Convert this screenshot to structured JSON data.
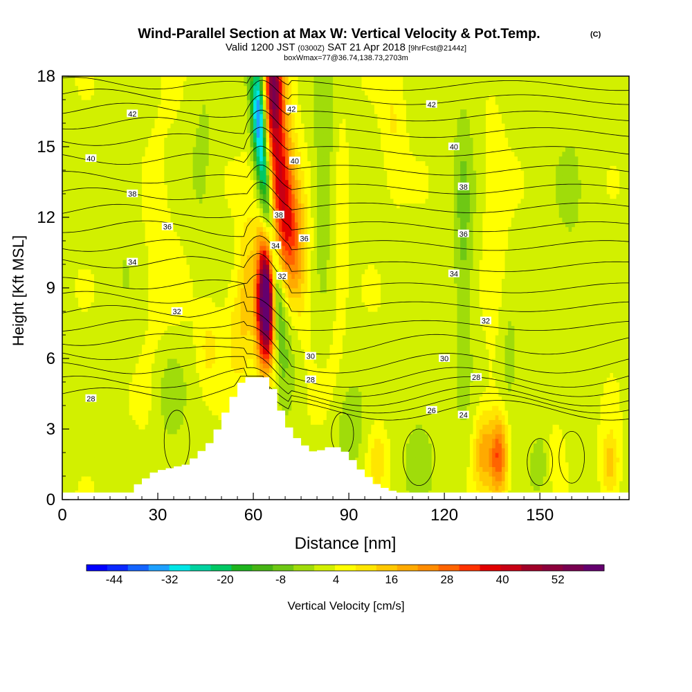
{
  "figure": {
    "title_main": "Wind-Parallel Section at Max W: Vertical Velocity & Pot.Temp.",
    "title_mark": "(C)",
    "line2_a": "Valid 1200 JST",
    "line2_b": "(0300Z)",
    "line2_c": "SAT 21 Apr 2018",
    "line2_d": "[9hrFcst@2144z]",
    "line3": "boxWmax=77@36.74,138.73,2703m"
  },
  "chart_data": {
    "type": "heatmap",
    "xlabel": "Distance [nm]",
    "ylabel": "Height [Kft MSL]",
    "xlim": [
      0,
      178
    ],
    "ylim": [
      0,
      18
    ],
    "x_ticks": [
      0,
      30,
      60,
      90,
      120,
      150
    ],
    "y_ticks": [
      0,
      3,
      6,
      9,
      12,
      15,
      18
    ],
    "colorbar": {
      "label": "Vertical Velocity [cm/s]",
      "tick_labels": [
        "-44",
        "-32",
        "-20",
        "-8",
        "4",
        "16",
        "28",
        "40",
        "52"
      ],
      "tick_values": [
        -44,
        -32,
        -20,
        -8,
        4,
        16,
        28,
        40,
        52
      ],
      "range": [
        -50,
        62
      ],
      "colors": [
        "#0000ff",
        "#0a28ff",
        "#1464ff",
        "#1ea0ff",
        "#00e6e6",
        "#00d2a0",
        "#00c864",
        "#1eb41e",
        "#46b414",
        "#6ec814",
        "#a0dc0a",
        "#d2f000",
        "#ffff00",
        "#ffe600",
        "#ffc800",
        "#ffaa00",
        "#ff8c00",
        "#ff6400",
        "#ff3200",
        "#e10000",
        "#c80014",
        "#a00028",
        "#8c003c",
        "#780050",
        "#64006e"
      ]
    },
    "terrain_kft": [
      {
        "x": 0,
        "z": 0.3
      },
      {
        "x": 20,
        "z": 0.3
      },
      {
        "x": 22,
        "z": 0.6
      },
      {
        "x": 25,
        "z": 0.9
      },
      {
        "x": 28,
        "z": 1.2
      },
      {
        "x": 38,
        "z": 1.5
      },
      {
        "x": 42,
        "z": 2.0
      },
      {
        "x": 45,
        "z": 2.4
      },
      {
        "x": 48,
        "z": 3.1
      },
      {
        "x": 50,
        "z": 3.7
      },
      {
        "x": 53,
        "z": 4.5
      },
      {
        "x": 56,
        "z": 5.2
      },
      {
        "x": 63,
        "z": 5.2
      },
      {
        "x": 65,
        "z": 4.7
      },
      {
        "x": 68,
        "z": 3.6
      },
      {
        "x": 71,
        "z": 2.8
      },
      {
        "x": 75,
        "z": 2.3
      },
      {
        "x": 78,
        "z": 2.0
      },
      {
        "x": 84,
        "z": 2.3
      },
      {
        "x": 88,
        "z": 2.0
      },
      {
        "x": 93,
        "z": 1.2
      },
      {
        "x": 98,
        "z": 0.6
      },
      {
        "x": 104,
        "z": 0.3
      },
      {
        "x": 178,
        "z": 0.3
      }
    ],
    "w_features": [
      {
        "x": 64,
        "z": 8.0,
        "sx": 2.0,
        "sz": 1.7,
        "w": 56,
        "tilt": 0
      },
      {
        "x": 64.5,
        "z": 9.8,
        "sx": 2.2,
        "sz": 1.8,
        "w": 26,
        "tilt": 0
      },
      {
        "x": 67.5,
        "z": 15.5,
        "sx": 3.0,
        "sz": 4.5,
        "w": 30,
        "tilt": -0.8
      },
      {
        "x": 67,
        "z": 12.3,
        "sx": 3.6,
        "sz": 2.2,
        "w": 18,
        "tilt": -0.8
      },
      {
        "x": 66.5,
        "z": 17.7,
        "sx": 1.8,
        "sz": 1.4,
        "w": 26,
        "tilt": 0
      },
      {
        "x": 67,
        "z": 9.0,
        "sx": 1.5,
        "sz": 1.8,
        "w": -12,
        "tilt": 0
      },
      {
        "x": 64,
        "z": 13.0,
        "sx": 1.7,
        "sz": 3.6,
        "w": -38,
        "tilt": -0.7
      },
      {
        "x": 62,
        "z": 17.0,
        "sx": 1.7,
        "sz": 1.8,
        "w": -26,
        "tilt": 0
      },
      {
        "x": 58,
        "z": 9.5,
        "sx": 2.0,
        "sz": 2.0,
        "w": 10,
        "tilt": 0
      },
      {
        "x": 55,
        "z": 7.2,
        "sx": 3.0,
        "sz": 1.6,
        "w": 8,
        "tilt": 0
      },
      {
        "x": 72,
        "z": 7.5,
        "sx": 3.5,
        "sz": 2.0,
        "w": -8,
        "tilt": 0
      },
      {
        "x": 74,
        "z": 11.0,
        "sx": 3.0,
        "sz": 2.5,
        "w": 8,
        "tilt": 0
      },
      {
        "x": 83,
        "z": 14.0,
        "sx": 2.8,
        "sz": 3.5,
        "w": -10,
        "tilt": 0
      },
      {
        "x": 86,
        "z": 12.5,
        "sx": 2.5,
        "sz": 4.5,
        "w": 6,
        "tilt": 0
      },
      {
        "x": 104,
        "z": 16.0,
        "sx": 2.5,
        "sz": 2.0,
        "w": 6,
        "tilt": 0
      },
      {
        "x": 126,
        "z": 11.0,
        "sx": 2.2,
        "sz": 4.5,
        "w": -9,
        "tilt": 0
      },
      {
        "x": 136,
        "z": 11.0,
        "sx": 2.5,
        "sz": 4.0,
        "w": 5,
        "tilt": 0
      },
      {
        "x": 140,
        "z": 5.5,
        "sx": 2.5,
        "sz": 1.8,
        "w": -6,
        "tilt": 0
      },
      {
        "x": 137,
        "z": 1.8,
        "sx": 2.0,
        "sz": 1.2,
        "w": 28,
        "tilt": 0
      },
      {
        "x": 132,
        "z": 2.0,
        "sx": 2.0,
        "sz": 1.2,
        "w": 16,
        "tilt": 0
      },
      {
        "x": 155,
        "z": 2.0,
        "sx": 2.0,
        "sz": 1.0,
        "w": 6,
        "tilt": 0
      },
      {
        "x": 172,
        "z": 1.5,
        "sx": 2.0,
        "sz": 1.0,
        "w": 14,
        "tilt": 0
      },
      {
        "x": 150,
        "z": 1.5,
        "sx": 2.5,
        "sz": 1.0,
        "w": -6,
        "tilt": 0
      },
      {
        "x": 112,
        "z": 1.8,
        "sx": 3.0,
        "sz": 1.3,
        "w": -7,
        "tilt": 0
      },
      {
        "x": 90,
        "z": 3.0,
        "sx": 3.0,
        "sz": 1.5,
        "w": -7,
        "tilt": 0
      },
      {
        "x": 99,
        "z": 1.8,
        "sx": 2.0,
        "sz": 1.0,
        "w": 9,
        "tilt": 0
      },
      {
        "x": 34,
        "z": 4.5,
        "sx": 3.0,
        "sz": 1.5,
        "w": -7,
        "tilt": 0
      },
      {
        "x": 46,
        "z": 6.5,
        "sx": 2.5,
        "sz": 1.3,
        "w": 7,
        "tilt": 0
      },
      {
        "x": 20,
        "z": 12.0,
        "sx": 4.0,
        "sz": 4.0,
        "w": -3,
        "tilt": 0
      },
      {
        "x": 30,
        "z": 10.0,
        "sx": 5.0,
        "sz": 5.0,
        "w": 3,
        "tilt": 0
      },
      {
        "x": 160,
        "z": 12.0,
        "sx": 5.0,
        "sz": 6.0,
        "w": -3,
        "tilt": 0
      },
      {
        "x": 44,
        "z": 15.0,
        "sx": 3.0,
        "sz": 3.0,
        "w": -4,
        "tilt": 0
      }
    ],
    "theta_lines_kft": [
      {
        "label": "28",
        "far": 4.5,
        "lee": 3.8
      },
      {
        "label": "",
        "far": 5.0,
        "lee": 4.1
      },
      {
        "label": "",
        "far": 5.6,
        "lee": 4.4
      },
      {
        "label": "",
        "far": 6.2,
        "lee": 4.8
      },
      {
        "label": "30",
        "far": 6.8,
        "lee": 5.2
      },
      {
        "label": "",
        "far": 7.4,
        "lee": 5.8
      },
      {
        "label": "32",
        "far": 8.0,
        "lee": 6.6
      },
      {
        "label": "",
        "far": 8.6,
        "lee": 7.4
      },
      {
        "label": "",
        "far": 9.2,
        "lee": 8.2
      },
      {
        "label": "34",
        "far": 10.1,
        "lee": 9.0
      },
      {
        "label": "",
        "far": 10.8,
        "lee": 9.9
      },
      {
        "label": "36",
        "far": 11.6,
        "lee": 10.8
      },
      {
        "label": "",
        "far": 12.3,
        "lee": 11.6
      },
      {
        "label": "38",
        "far": 13.0,
        "lee": 12.4
      },
      {
        "label": "",
        "far": 13.7,
        "lee": 13.2
      },
      {
        "label": "40",
        "far": 14.5,
        "lee": 14.0
      },
      {
        "label": "",
        "far": 15.3,
        "lee": 14.8
      },
      {
        "label": "",
        "far": 16.0,
        "lee": 15.6
      },
      {
        "label": "42",
        "far": 16.6,
        "lee": 16.3
      },
      {
        "label": "",
        "far": 17.2,
        "lee": 17.0
      },
      {
        "label": "",
        "far": 17.7,
        "lee": 17.6
      }
    ],
    "theta_labels": [
      {
        "text": "42",
        "x": 22,
        "z": 16.4
      },
      {
        "text": "40",
        "x": 9,
        "z": 14.5
      },
      {
        "text": "38",
        "x": 22,
        "z": 13.0
      },
      {
        "text": "36",
        "x": 33,
        "z": 11.6
      },
      {
        "text": "34",
        "x": 22,
        "z": 10.1
      },
      {
        "text": "32",
        "x": 36,
        "z": 8.0
      },
      {
        "text": "28",
        "x": 9,
        "z": 4.3
      },
      {
        "text": "42",
        "x": 72,
        "z": 16.6
      },
      {
        "text": "40",
        "x": 73,
        "z": 14.4
      },
      {
        "text": "38",
        "x": 68,
        "z": 12.1
      },
      {
        "text": "34",
        "x": 67,
        "z": 10.8
      },
      {
        "text": "36",
        "x": 76,
        "z": 11.1
      },
      {
        "text": "32",
        "x": 69,
        "z": 9.5
      },
      {
        "text": "30",
        "x": 78,
        "z": 6.1
      },
      {
        "text": "28",
        "x": 78,
        "z": 5.1
      },
      {
        "text": "42",
        "x": 116,
        "z": 16.8
      },
      {
        "text": "40",
        "x": 123,
        "z": 15.0
      },
      {
        "text": "38",
        "x": 126,
        "z": 13.3
      },
      {
        "text": "36",
        "x": 126,
        "z": 11.3
      },
      {
        "text": "34",
        "x": 123,
        "z": 9.6
      },
      {
        "text": "32",
        "x": 133,
        "z": 7.6
      },
      {
        "text": "30",
        "x": 120,
        "z": 6.0
      },
      {
        "text": "28",
        "x": 130,
        "z": 5.2
      },
      {
        "text": "26",
        "x": 116,
        "z": 3.8
      },
      {
        "text": "24",
        "x": 126,
        "z": 3.6
      }
    ]
  }
}
